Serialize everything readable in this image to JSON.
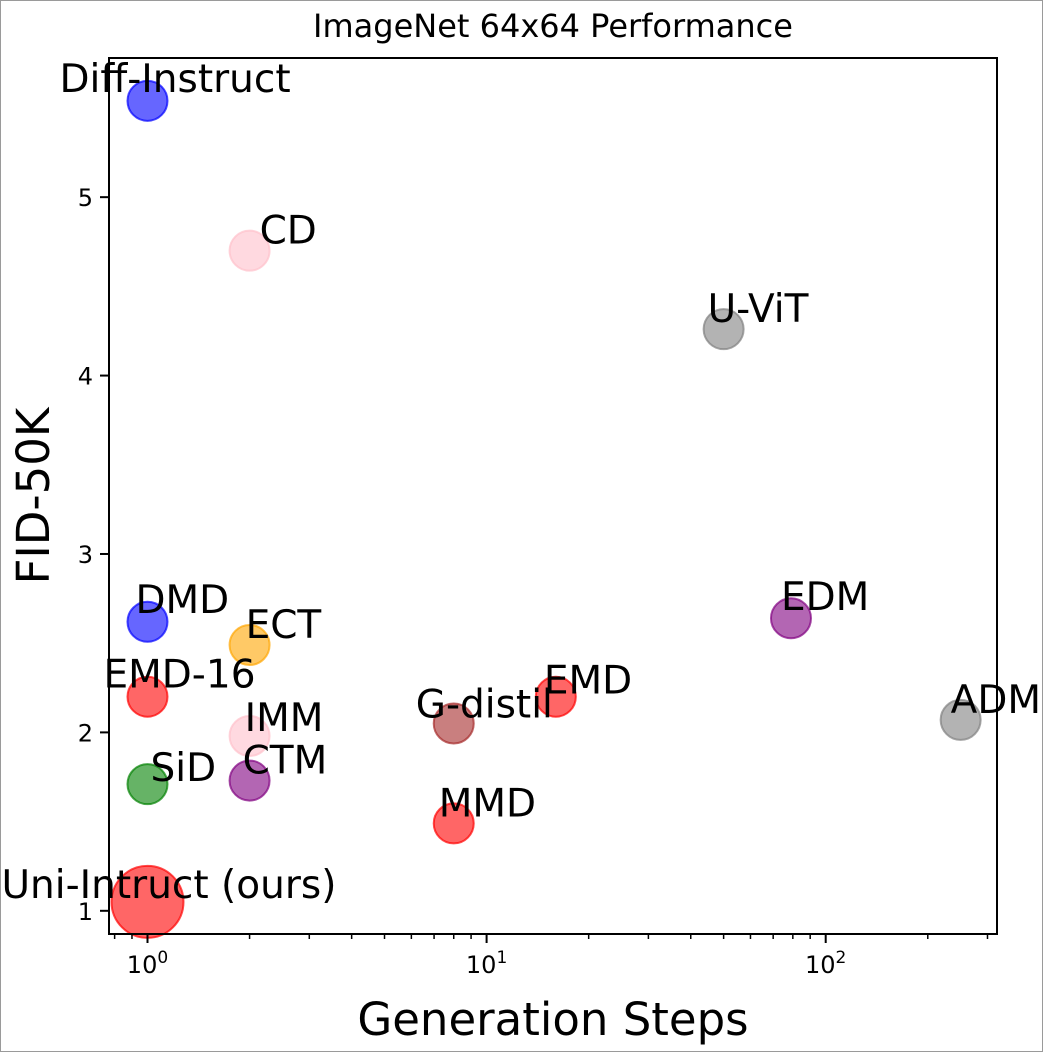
{
  "chart_data": {
    "type": "scatter",
    "title": "ImageNet 64x64 Performance",
    "xlabel": "Generation Steps",
    "ylabel": "FID-50K",
    "xscale": "log",
    "xlim": [
      0.77,
      320
    ],
    "ylim": [
      0.87,
      5.78
    ],
    "x_ticks": [
      {
        "value": 1,
        "base": "10",
        "exp": "0"
      },
      {
        "value": 10,
        "base": "10",
        "exp": "1"
      },
      {
        "value": 100,
        "base": "10",
        "exp": "2"
      }
    ],
    "y_ticks": [
      {
        "value": 1,
        "label": "1"
      },
      {
        "value": 2,
        "label": "2"
      },
      {
        "value": 3,
        "label": "3"
      },
      {
        "value": 4,
        "label": "4"
      },
      {
        "value": 5,
        "label": "5"
      }
    ],
    "grid": false,
    "points": [
      {
        "name": "Diff-Instruct",
        "x": 1,
        "y": 5.54,
        "color": "#0000ff"
      },
      {
        "name": "CD",
        "x": 2,
        "y": 4.7,
        "color": "#ffc0cb"
      },
      {
        "name": "U-ViT",
        "x": 50,
        "y": 4.26,
        "color": "#808080"
      },
      {
        "name": "DMD",
        "x": 1,
        "y": 2.62,
        "color": "#0000ff"
      },
      {
        "name": "EDM",
        "x": 79,
        "y": 2.64,
        "color": "#800080"
      },
      {
        "name": "ECT",
        "x": 2,
        "y": 2.49,
        "color": "#ffa500"
      },
      {
        "name": "EMD-16",
        "x": 1,
        "y": 2.2,
        "color": "#ff0000"
      },
      {
        "name": "EMD",
        "x": 16,
        "y": 2.2,
        "color": "#ff0000"
      },
      {
        "name": "ADM",
        "x": 250,
        "y": 2.07,
        "color": "#808080"
      },
      {
        "name": "G-distil",
        "x": 8,
        "y": 2.05,
        "color": "#a52a2a"
      },
      {
        "name": "IMM",
        "x": 2,
        "y": 1.98,
        "color": "#ffc0cb"
      },
      {
        "name": "CTM",
        "x": 2,
        "y": 1.73,
        "color": "#800080"
      },
      {
        "name": "SiD",
        "x": 1,
        "y": 1.71,
        "color": "#008000"
      },
      {
        "name": "MMD",
        "x": 8,
        "y": 1.49,
        "color": "#ff0000"
      },
      {
        "name": "Uni-Intruct (ours)",
        "x": 1,
        "y": 1.05,
        "color": "#ff0000",
        "highlight": true
      }
    ]
  }
}
